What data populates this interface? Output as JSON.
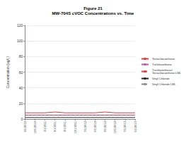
{
  "chart_data": {
    "type": "line",
    "title": "Figure 21",
    "subtitle": "MW-704S cVOC Concentrations vs. Time",
    "y_label": "Concentration (ug/L)",
    "categories": [
      "9/1/2010",
      "12/1/2010",
      "3/1/2011",
      "6/1/2011",
      "9/1/2011",
      "12/1/2011",
      "3/1/2012",
      "6/1/2012",
      "9/1/2012",
      "12/1/2012",
      "3/1/2013",
      "6/1/2013"
    ],
    "series": [
      {
        "name": "Tetrachloroethene",
        "color": "#e0393e",
        "line_style": "solid",
        "values": [
          8,
          8,
          8,
          9,
          8,
          8,
          8,
          8,
          9,
          8,
          8,
          8
        ]
      },
      {
        "name": "Trichloroethene",
        "color": "#b05fa8",
        "line_style": "solid",
        "values": [
          5,
          5,
          5,
          5,
          5,
          5,
          5,
          5,
          5,
          5,
          5,
          5
        ]
      },
      {
        "name": "Trichloroethene/Tetrachloroethene LML",
        "color": "#e0393e",
        "line_style": "dashed",
        "values": [
          5,
          5,
          5,
          5,
          5,
          5,
          5,
          5,
          5,
          5,
          5,
          5
        ]
      },
      {
        "name": "Vinyl Chloride",
        "color": "#222222",
        "line_style": "solid",
        "values": [
          2,
          2,
          2,
          2,
          2,
          2,
          2,
          2,
          2,
          2,
          2,
          2
        ]
      },
      {
        "name": "Vinyl Chloride LML",
        "color": "#8a8a8a",
        "line_style": "dashed",
        "values": [
          2,
          2,
          2,
          2,
          2,
          2,
          2,
          2,
          2,
          2,
          2,
          2
        ]
      }
    ],
    "ylim": [
      0,
      120
    ],
    "yticks": [
      0,
      20,
      40,
      60,
      80,
      100,
      120
    ],
    "grid": true,
    "legend": "right"
  }
}
